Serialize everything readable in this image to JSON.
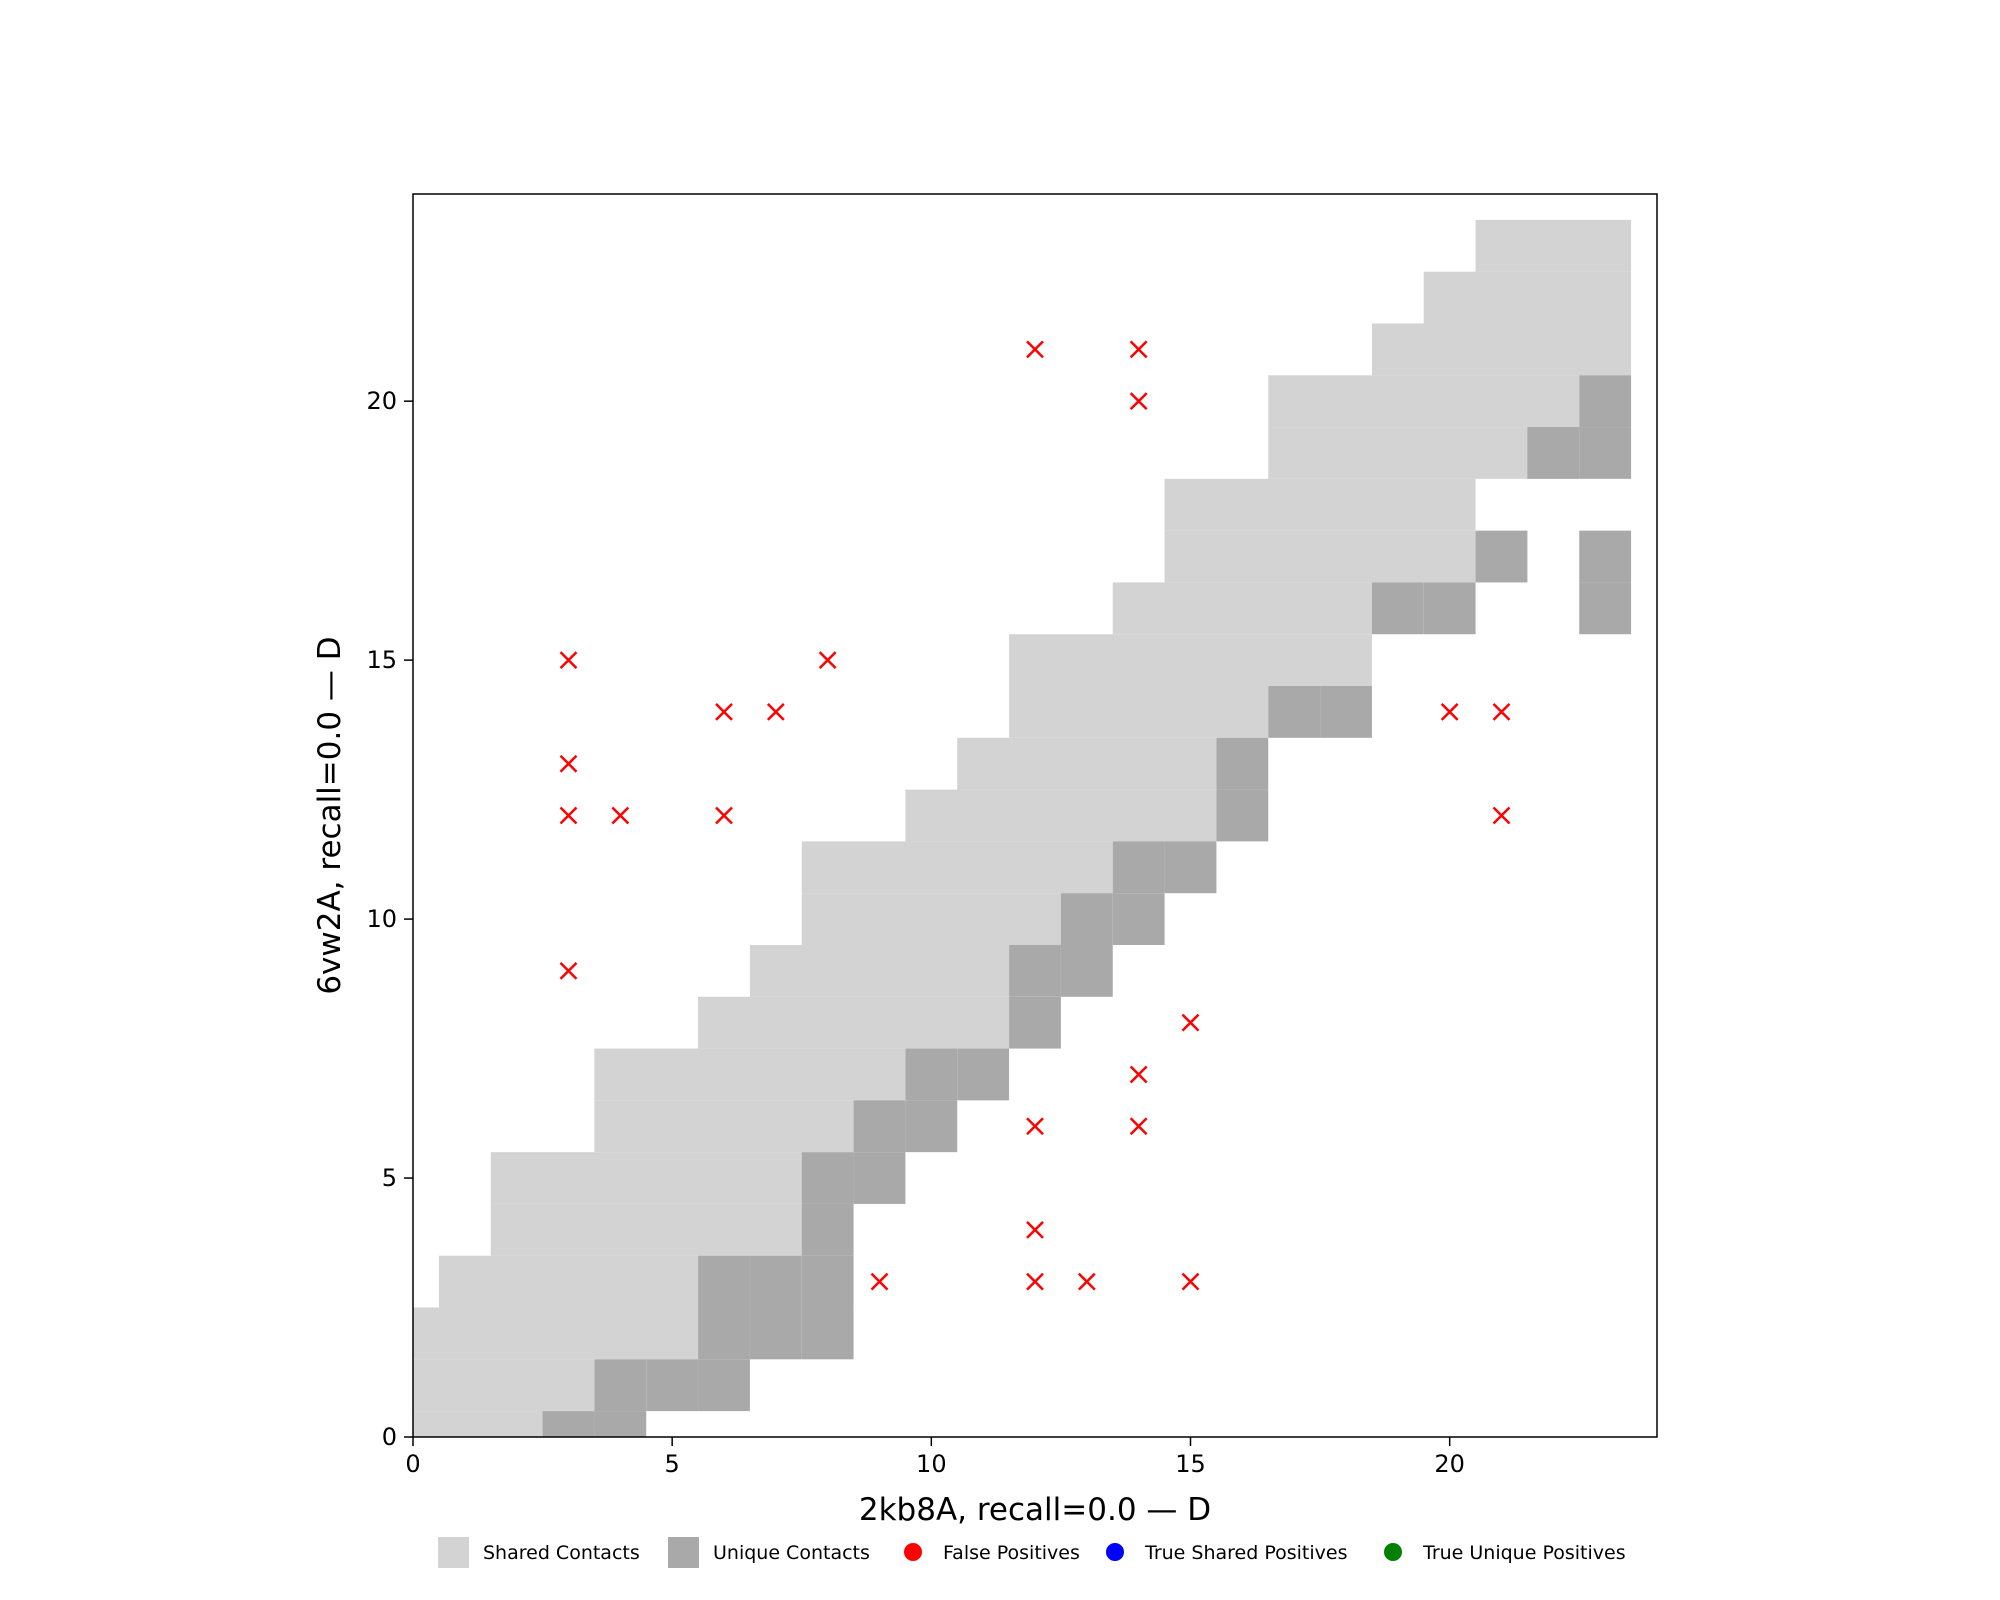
{
  "chart_data": {
    "type": "heatmap",
    "xlabel": "2kb8A, recall=0.0 — D",
    "ylabel": "6vw2A, recall=0.0 — D",
    "xlim": [
      0,
      24
    ],
    "ylim": [
      0,
      24
    ],
    "xticks": [
      0,
      5,
      10,
      15,
      20
    ],
    "yticks": [
      0,
      5,
      10,
      15,
      20
    ],
    "grid": false,
    "legend_placement": "bottom-center",
    "colors": {
      "shared": "#d3d3d3",
      "unique": "#a9a9a9",
      "false_positive": "#ff0000",
      "true_shared_positive": "#0000ff",
      "true_unique_positive": "#008000"
    },
    "legend": [
      {
        "label": "Shared Contacts",
        "kind": "square",
        "color": "#d3d3d3"
      },
      {
        "label": "Unique Contacts",
        "kind": "square",
        "color": "#a9a9a9"
      },
      {
        "label": "False Positives",
        "kind": "dot",
        "color": "#ff0000"
      },
      {
        "label": "True Shared Positives",
        "kind": "dot",
        "color": "#0000ff"
      },
      {
        "label": "True Unique Positives",
        "kind": "dot",
        "color": "#008000"
      }
    ],
    "shared_cells": [
      {
        "row": 0,
        "x0": 0,
        "x1": 2
      },
      {
        "row": 1,
        "x0": 0,
        "x1": 3
      },
      {
        "row": 2,
        "x0": 0,
        "x1": 5
      },
      {
        "row": 3,
        "x0": 1,
        "x1": 5
      },
      {
        "row": 4,
        "x0": 2,
        "x1": 7
      },
      {
        "row": 5,
        "x0": 2,
        "x1": 7
      },
      {
        "row": 6,
        "x0": 4,
        "x1": 8
      },
      {
        "row": 7,
        "x0": 4,
        "x1": 9
      },
      {
        "row": 8,
        "x0": 6,
        "x1": 11
      },
      {
        "row": 9,
        "x0": 7,
        "x1": 11
      },
      {
        "row": 10,
        "x0": 8,
        "x1": 12
      },
      {
        "row": 11,
        "x0": 8,
        "x1": 13
      },
      {
        "row": 12,
        "x0": 10,
        "x1": 15
      },
      {
        "row": 13,
        "x0": 11,
        "x1": 15
      },
      {
        "row": 14,
        "x0": 12,
        "x1": 16
      },
      {
        "row": 15,
        "x0": 12,
        "x1": 18
      },
      {
        "row": 16,
        "x0": 14,
        "x1": 18
      },
      {
        "row": 17,
        "x0": 15,
        "x1": 20
      },
      {
        "row": 18,
        "x0": 15,
        "x1": 20
      },
      {
        "row": 19,
        "x0": 17,
        "x1": 22
      },
      {
        "row": 20,
        "x0": 17,
        "x1": 22
      },
      {
        "row": 21,
        "x0": 19,
        "x1": 23
      },
      {
        "row": 22,
        "x0": 20,
        "x1": 23
      },
      {
        "row": 23,
        "x0": 21,
        "x1": 23
      }
    ],
    "unique_cells": [
      [
        3,
        0
      ],
      [
        4,
        0
      ],
      [
        4,
        1
      ],
      [
        5,
        1
      ],
      [
        6,
        1
      ],
      [
        6,
        2
      ],
      [
        7,
        2
      ],
      [
        8,
        2
      ],
      [
        6,
        3
      ],
      [
        7,
        3
      ],
      [
        8,
        3
      ],
      [
        8,
        4
      ],
      [
        8,
        5
      ],
      [
        9,
        5
      ],
      [
        9,
        6
      ],
      [
        10,
        6
      ],
      [
        10,
        7
      ],
      [
        11,
        7
      ],
      [
        12,
        8
      ],
      [
        12,
        9
      ],
      [
        13,
        9
      ],
      [
        13,
        10
      ],
      [
        14,
        10
      ],
      [
        14,
        11
      ],
      [
        15,
        11
      ],
      [
        16,
        12
      ],
      [
        16,
        13
      ],
      [
        17,
        14
      ],
      [
        18,
        14
      ],
      [
        19,
        16
      ],
      [
        20,
        16
      ],
      [
        23,
        16
      ],
      [
        21,
        17
      ],
      [
        23,
        17
      ],
      [
        22,
        19
      ],
      [
        23,
        19
      ],
      [
        23,
        20
      ]
    ],
    "false_positives": [
      [
        3,
        9
      ],
      [
        3,
        12
      ],
      [
        3,
        13
      ],
      [
        3,
        15
      ],
      [
        4,
        12
      ],
      [
        6,
        12
      ],
      [
        6,
        14
      ],
      [
        7,
        14
      ],
      [
        8,
        15
      ],
      [
        9,
        3
      ],
      [
        12,
        3
      ],
      [
        12,
        4
      ],
      [
        12,
        6
      ],
      [
        12,
        21
      ],
      [
        13,
        3
      ],
      [
        14,
        6
      ],
      [
        14,
        7
      ],
      [
        14,
        20
      ],
      [
        14,
        21
      ],
      [
        15,
        3
      ],
      [
        15,
        8
      ],
      [
        20,
        14
      ],
      [
        21,
        14
      ],
      [
        21,
        12
      ]
    ],
    "true_shared_positives": [],
    "true_unique_positives": []
  }
}
